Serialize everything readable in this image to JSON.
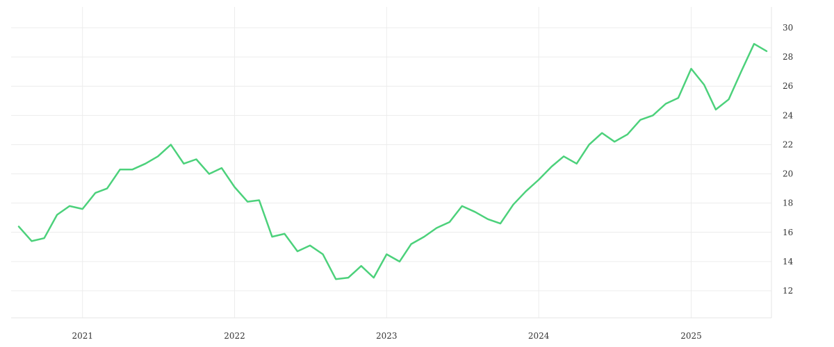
{
  "chart_data": {
    "type": "line",
    "title": "",
    "xlabel": "",
    "ylabel": "",
    "x_axis": {
      "type": "date",
      "ticks": [
        "2021",
        "2022",
        "2023",
        "2024",
        "2025"
      ]
    },
    "y_axis": {
      "position": "right",
      "ylim": [
        10,
        31
      ],
      "ticks": [
        12,
        14,
        16,
        18,
        20,
        22,
        24,
        26,
        28,
        30
      ]
    },
    "grid": true,
    "legend": "none",
    "series": [
      {
        "color": "#4cd17b",
        "points": [
          [
            "2020-08-01",
            16.4
          ],
          [
            "2020-09-01",
            15.4
          ],
          [
            "2020-10-01",
            15.6
          ],
          [
            "2020-11-01",
            17.2
          ],
          [
            "2020-12-01",
            17.8
          ],
          [
            "2021-01-01",
            17.6
          ],
          [
            "2021-02-01",
            18.7
          ],
          [
            "2021-03-01",
            19.0
          ],
          [
            "2021-04-01",
            20.3
          ],
          [
            "2021-05-01",
            20.3
          ],
          [
            "2021-06-01",
            20.7
          ],
          [
            "2021-07-01",
            21.2
          ],
          [
            "2021-08-01",
            22.0
          ],
          [
            "2021-09-01",
            20.7
          ],
          [
            "2021-10-01",
            21.0
          ],
          [
            "2021-11-01",
            20.0
          ],
          [
            "2021-12-01",
            20.4
          ],
          [
            "2022-01-01",
            19.1
          ],
          [
            "2022-02-01",
            18.1
          ],
          [
            "2022-03-01",
            18.2
          ],
          [
            "2022-04-01",
            15.7
          ],
          [
            "2022-05-01",
            15.9
          ],
          [
            "2022-06-01",
            14.7
          ],
          [
            "2022-07-01",
            15.1
          ],
          [
            "2022-08-01",
            14.5
          ],
          [
            "2022-09-01",
            12.8
          ],
          [
            "2022-10-01",
            12.9
          ],
          [
            "2022-11-01",
            13.7
          ],
          [
            "2022-12-01",
            12.9
          ],
          [
            "2023-01-01",
            14.5
          ],
          [
            "2023-02-01",
            14.0
          ],
          [
            "2023-03-01",
            15.2
          ],
          [
            "2023-04-01",
            15.7
          ],
          [
            "2023-05-01",
            16.3
          ],
          [
            "2023-06-01",
            16.7
          ],
          [
            "2023-07-01",
            17.8
          ],
          [
            "2023-08-01",
            17.4
          ],
          [
            "2023-09-01",
            16.9
          ],
          [
            "2023-10-01",
            16.6
          ],
          [
            "2023-11-01",
            17.9
          ],
          [
            "2023-12-01",
            18.8
          ],
          [
            "2024-01-01",
            19.6
          ],
          [
            "2024-02-01",
            20.5
          ],
          [
            "2024-03-01",
            21.2
          ],
          [
            "2024-04-01",
            20.7
          ],
          [
            "2024-05-01",
            22.0
          ],
          [
            "2024-06-01",
            22.8
          ],
          [
            "2024-07-01",
            22.2
          ],
          [
            "2024-08-01",
            22.7
          ],
          [
            "2024-09-01",
            23.7
          ],
          [
            "2024-10-01",
            24.0
          ],
          [
            "2024-11-01",
            24.8
          ],
          [
            "2024-12-01",
            25.2
          ],
          [
            "2025-01-01",
            27.2
          ],
          [
            "2025-02-01",
            26.1
          ],
          [
            "2025-03-01",
            24.4
          ],
          [
            "2025-04-01",
            25.1
          ],
          [
            "2025-05-01",
            27.0
          ],
          [
            "2025-06-01",
            28.9
          ],
          [
            "2025-07-01",
            28.4
          ]
        ]
      }
    ]
  }
}
